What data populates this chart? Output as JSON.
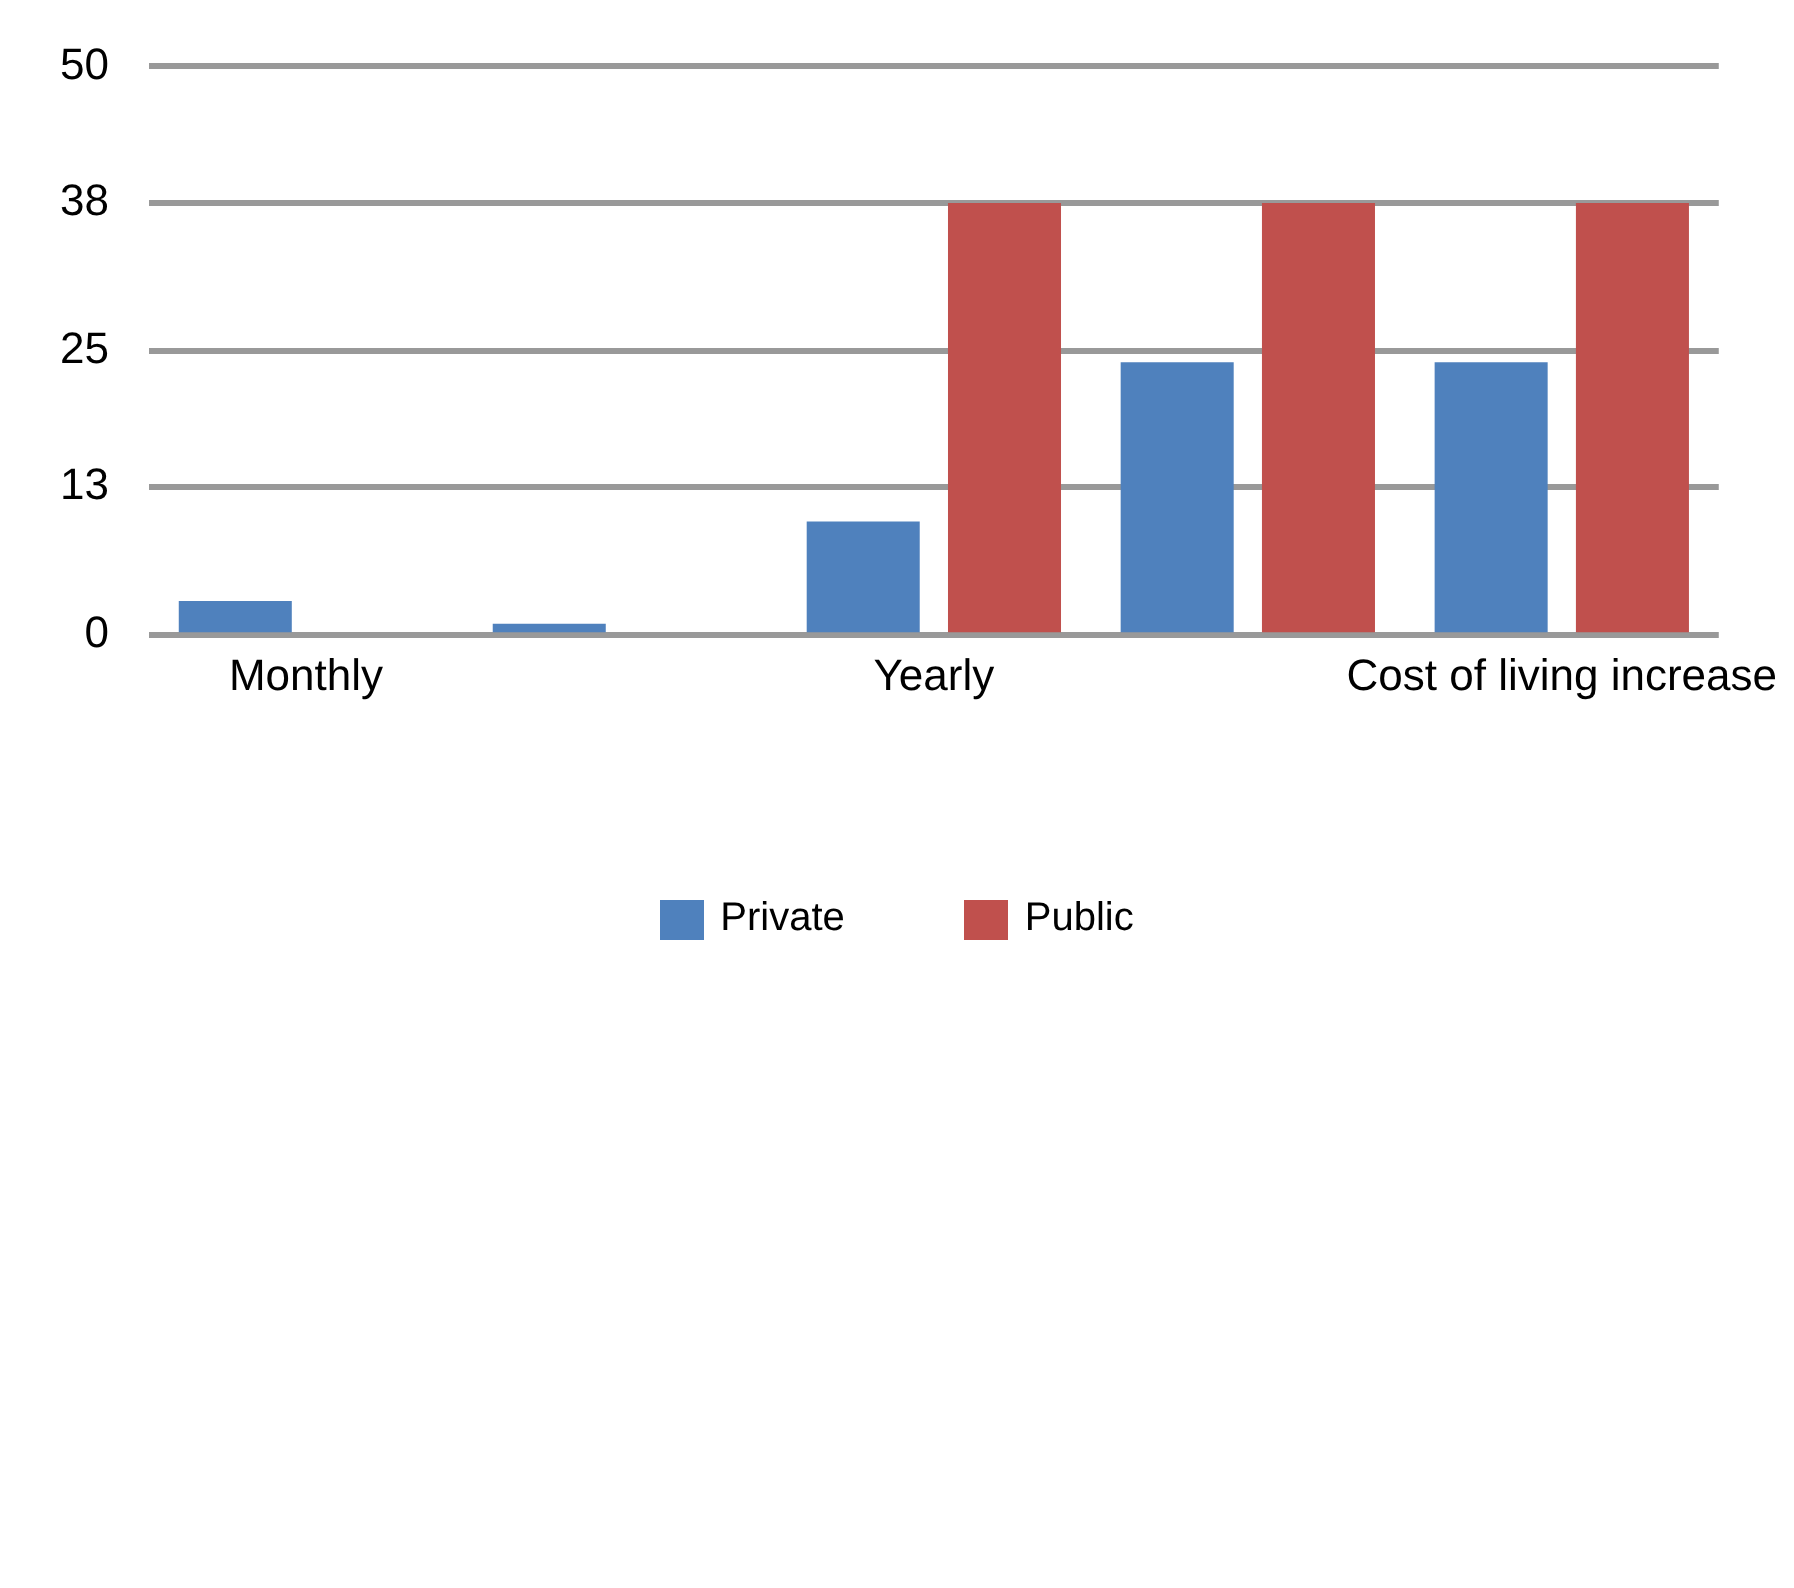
{
  "chart_data": {
    "type": "bar",
    "categories": [
      "Monthly",
      null,
      "Yearly",
      null,
      "Cost of living increase"
    ],
    "series": [
      {
        "name": "Private",
        "color": "#4f81bd",
        "values": [
          3,
          1,
          10,
          24,
          24
        ]
      },
      {
        "name": "Public",
        "color": "#c0504d",
        "values": [
          0,
          0,
          38,
          38,
          38
        ]
      }
    ],
    "ylim": [
      0,
      50
    ],
    "yticks": [
      0,
      13,
      25,
      38,
      50
    ],
    "grid": "y",
    "legend": "bottom"
  }
}
